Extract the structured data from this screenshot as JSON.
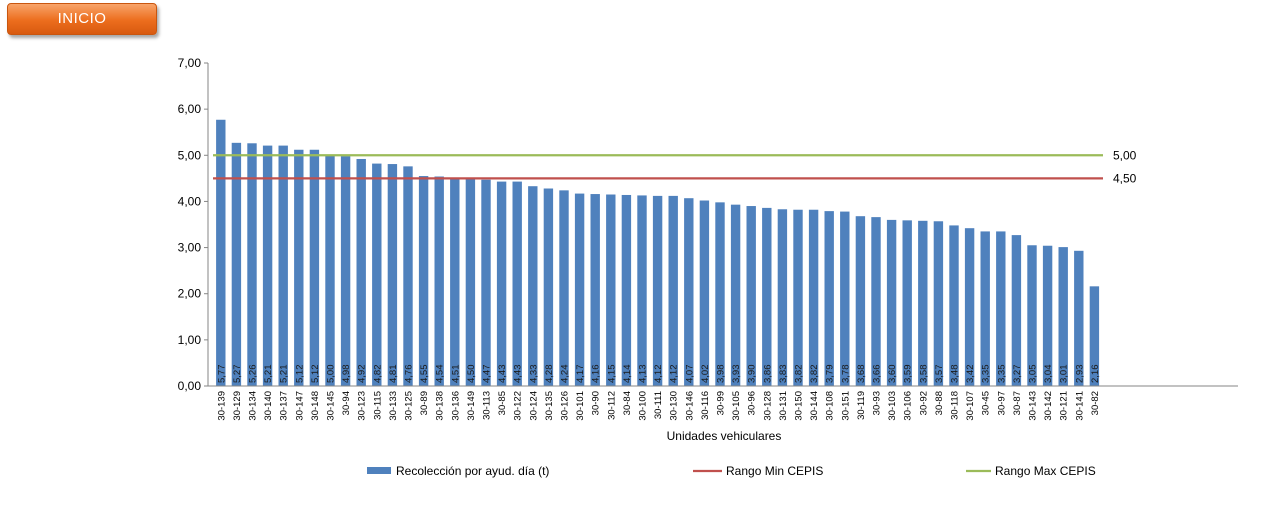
{
  "nav": {
    "inicio_label": "INICIO"
  },
  "chart_data": {
    "type": "bar",
    "xlabel": "Unidades vehiculares",
    "ylabel": "",
    "ylim": [
      0,
      7
    ],
    "yticks": [
      "0,00",
      "1,00",
      "2,00",
      "3,00",
      "4,00",
      "5,00",
      "6,00",
      "7,00"
    ],
    "grid": false,
    "legend_position": "bottom",
    "categories": [
      "30-139",
      "30-129",
      "30-134",
      "30-140",
      "30-137",
      "30-147",
      "30-148",
      "30-145",
      "30-94",
      "30-123",
      "30-115",
      "30-133",
      "30-125",
      "30-89",
      "30-138",
      "30-136",
      "30-149",
      "30-113",
      "30-85",
      "30-122",
      "30-124",
      "30-135",
      "30-126",
      "30-101",
      "30-90",
      "30-112",
      "30-84",
      "30-100",
      "30-111",
      "30-130",
      "30-146",
      "30-116",
      "30-99",
      "30-105",
      "30-96",
      "30-128",
      "30-131",
      "30-150",
      "30-144",
      "30-108",
      "30-151",
      "30-119",
      "30-93",
      "30-103",
      "30-106",
      "30-92",
      "30-88",
      "30-118",
      "30-107",
      "30-45",
      "30-97",
      "30-87",
      "30-143",
      "30-142",
      "30-121",
      "30-141",
      "30-82"
    ],
    "series": [
      {
        "name": "Recolección por ayud. día (t)",
        "color": "#4f81bd",
        "values": [
          5.77,
          5.27,
          5.26,
          5.21,
          5.21,
          5.12,
          5.12,
          5.0,
          4.98,
          4.92,
          4.82,
          4.81,
          4.76,
          4.55,
          4.54,
          4.51,
          4.5,
          4.47,
          4.43,
          4.43,
          4.33,
          4.28,
          4.24,
          4.17,
          4.16,
          4.15,
          4.14,
          4.13,
          4.12,
          4.12,
          4.07,
          4.02,
          3.98,
          3.93,
          3.9,
          3.86,
          3.83,
          3.82,
          3.82,
          3.79,
          3.78,
          3.68,
          3.66,
          3.6,
          3.59,
          3.58,
          3.57,
          3.48,
          3.42,
          3.35,
          3.35,
          3.27,
          3.05,
          3.04,
          3.01,
          2.93,
          2.16
        ],
        "labels": [
          "5,77",
          "5,27",
          "5,26",
          "5,21",
          "5,21",
          "5,12",
          "5,12",
          "5,00",
          "4,98",
          "4,92",
          "4,82",
          "4,81",
          "4,76",
          "4,55",
          "4,54",
          "4,51",
          "4,50",
          "4,47",
          "4,43",
          "4,43",
          "4,33",
          "4,28",
          "4,24",
          "4,17",
          "4,16",
          "4,15",
          "4,14",
          "4,13",
          "4,12",
          "4,12",
          "4,07",
          "4,02",
          "3,98",
          "3,93",
          "3,90",
          "3,86",
          "3,83",
          "3,82",
          "3,82",
          "3,79",
          "3,78",
          "3,68",
          "3,66",
          "3,60",
          "3,59",
          "3,58",
          "3,57",
          "3,48",
          "3,42",
          "3,35",
          "3,35",
          "3,27",
          "3,05",
          "3,04",
          "3,01",
          "2,93",
          "2,16"
        ]
      },
      {
        "name": "Rango Min CEPIS",
        "color": "#c0504d",
        "value": 4.5,
        "label": "4,50"
      },
      {
        "name": "Rango Max CEPIS",
        "color": "#9bbb59",
        "value": 5.0,
        "label": "5,00"
      }
    ]
  }
}
